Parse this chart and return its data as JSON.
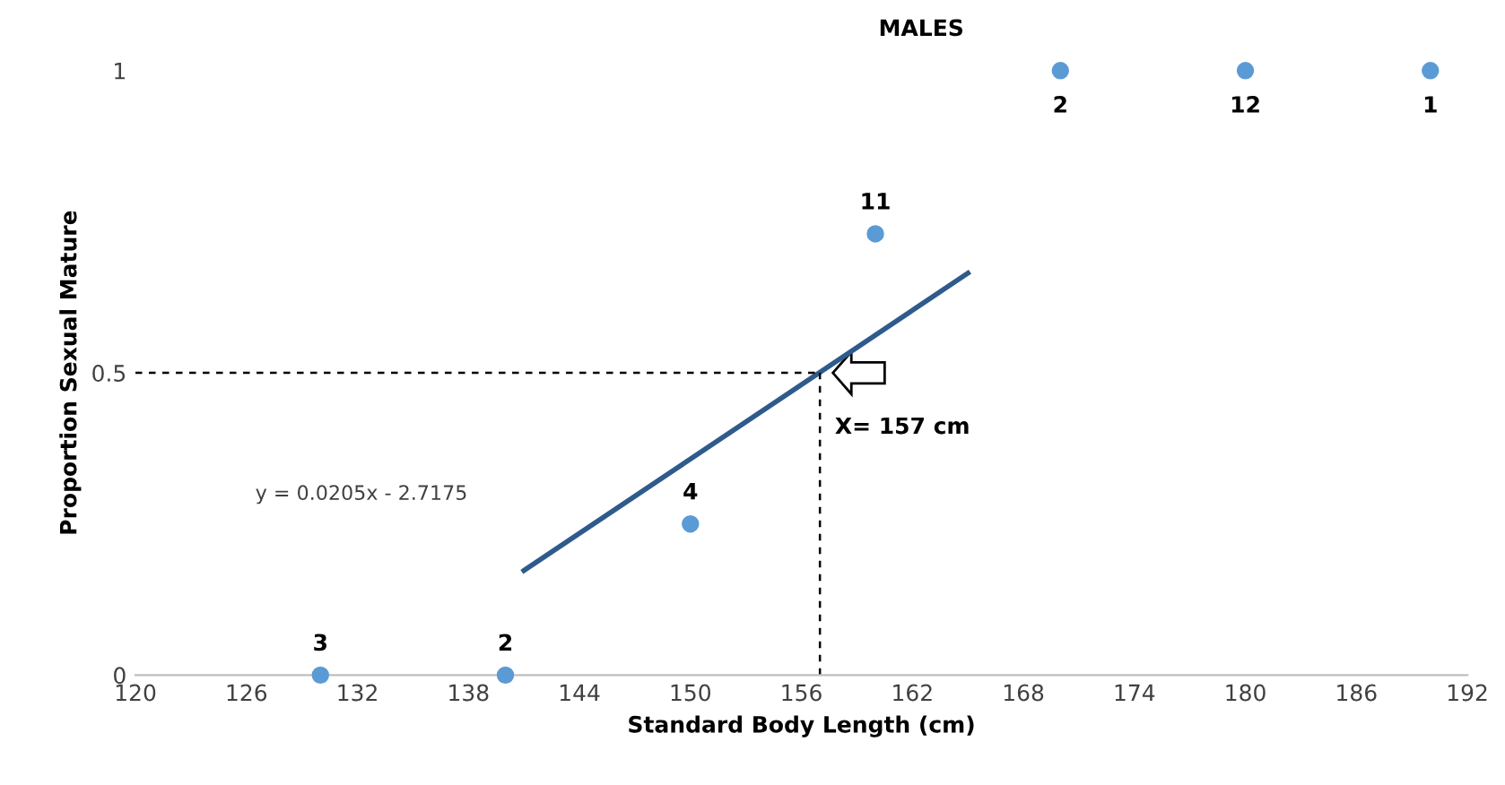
{
  "chart_data": {
    "type": "scatter",
    "title": "MALES",
    "xlabel": "Standard Body Length (cm)",
    "ylabel": "Proportion Sexual Mature",
    "xlim": [
      120,
      192
    ],
    "xticks": [
      120,
      126,
      132,
      138,
      144,
      150,
      156,
      162,
      168,
      174,
      180,
      186,
      192
    ],
    "ylim": [
      0,
      1
    ],
    "yticks": [
      0,
      0.5,
      1
    ],
    "grid": false,
    "series": [
      {
        "color": "#5b9bd5",
        "marker": "circle",
        "x": [
          130,
          140,
          150,
          160,
          170,
          180,
          190
        ],
        "values": [
          0,
          0,
          0.25,
          0.73,
          1,
          1,
          1
        ]
      },
      {
        "type": "line",
        "color": "#2f5b8c",
        "marker": "none",
        "x": [
          141,
          165
        ],
        "values": [
          0.173,
          0.665
        ]
      }
    ],
    "ref_lines": [
      {
        "axis": "y",
        "value": 0.5,
        "line_style": "dashed",
        "color": "#000000"
      },
      {
        "axis": "x",
        "value": 157,
        "line_style": "dashed",
        "color": "#000000"
      }
    ],
    "annotations": [
      "y = 0.0205x - 2.7175",
      {
        "text": "X= 157 cm",
        "x": 157,
        "y": 0.5
      },
      {
        "text": "3",
        "x": 130,
        "y": 0
      },
      {
        "text": "2",
        "x": 140,
        "y": 0
      },
      {
        "text": "4",
        "x": 150,
        "y": 0.25
      },
      {
        "text": "11",
        "x": 160,
        "y": 0.73
      },
      {
        "text": "2",
        "x": 170,
        "y": 1
      },
      {
        "text": "12",
        "x": 180,
        "y": 1
      },
      {
        "text": "1",
        "x": 190,
        "y": 1
      }
    ]
  }
}
